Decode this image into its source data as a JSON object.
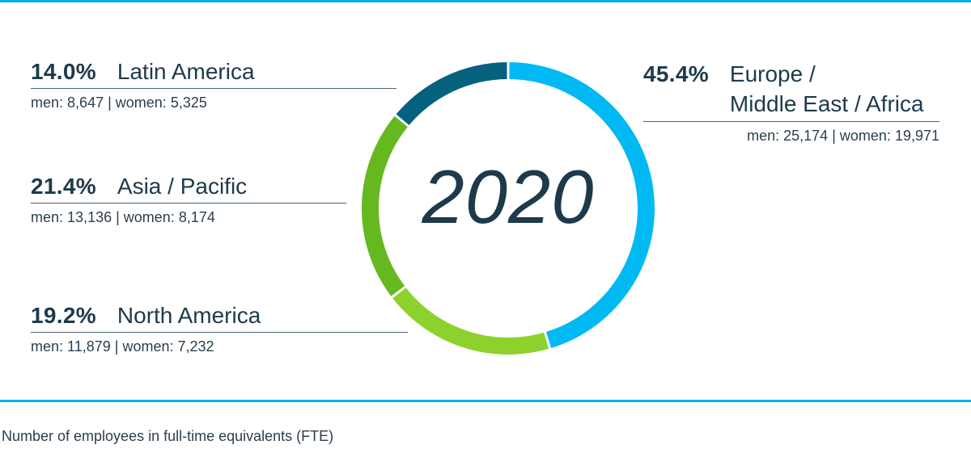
{
  "colors": {
    "rule": "#00aeef",
    "text": "#1e3a4a",
    "europe": "#00b9f2",
    "north_america": "#8dd22c",
    "asia_pacific": "#66b821",
    "latin_america": "#06617f"
  },
  "chart_data": {
    "type": "pie",
    "style": "donut",
    "center_label": "2020",
    "title": "",
    "series": [
      {
        "name": "Europe / Middle East / Africa",
        "percent": 45.4,
        "percent_label": "45.4%",
        "men": "25,174",
        "women": "19,971"
      },
      {
        "name": "North America",
        "percent": 19.2,
        "percent_label": "19.2%",
        "men": "11,879",
        "women": "7,232"
      },
      {
        "name": "Asia / Pacific",
        "percent": 21.4,
        "percent_label": "21.4%",
        "men": "13,136",
        "women": "8,174"
      },
      {
        "name": "Latin America",
        "percent": 14.0,
        "percent_label": "14.0%",
        "men": "8,647",
        "women": "5,325"
      }
    ],
    "footnote": "Number of employees in full-time equivalents (FTE)"
  },
  "labels": {
    "men_prefix": "men:",
    "women_prefix": "women:",
    "separator": "|",
    "europe_line1": "Europe /",
    "europe_line2": "Middle East / Africa"
  }
}
